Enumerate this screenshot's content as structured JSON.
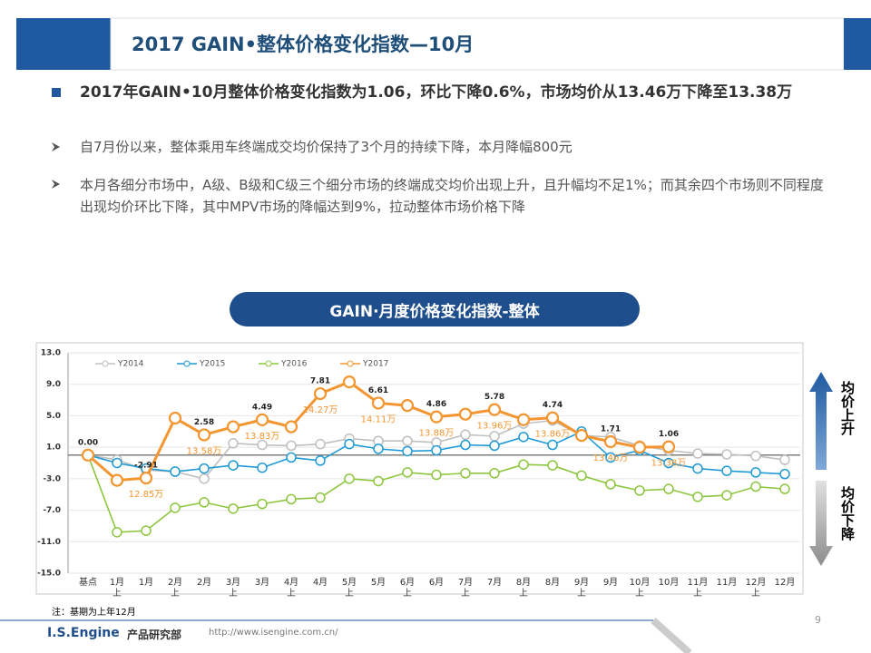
{
  "header": {
    "title": "2017 GAIN•整体价格变化指数—10月"
  },
  "headline": "2017年GAIN•10月整体价格变化指数为1.06，环比下降0.6%，市场均价从13.46万下降至13.38万",
  "points": [
    "自7月份以来，整体乘用车终端成交均价保持了3个月的持续下降，本月降幅800元",
    "本月各细分市场中，A级、B级和C级三个细分市场的终端成交均价出现上升，且升幅均不足1%；而其余四个市场则不同程度出现均价环比下降，其中MPV市场的降幅达到9%，拉动整体市场价格下降"
  ],
  "chart_data": {
    "type": "line",
    "title": "GAIN·月度价格变化指数-整体",
    "categories": [
      "基点",
      "1月上",
      "1月",
      "2月上",
      "2月",
      "3月上",
      "3月",
      "4月上",
      "4月",
      "5月上",
      "5月",
      "6月上",
      "6月",
      "7月上",
      "7月",
      "8月上",
      "8月",
      "9月上",
      "9月",
      "10月上",
      "10月",
      "11月上",
      "11月",
      "12月上",
      "12月"
    ],
    "ylim": [
      -15,
      13
    ],
    "yticks": [
      {
        "value": 13,
        "label": "13.0"
      },
      {
        "value": 9,
        "label": "9.0"
      },
      {
        "value": 5,
        "label": "5.0"
      },
      {
        "value": 1,
        "label": "1.0"
      },
      {
        "value": -3,
        "label": "-3.0"
      },
      {
        "value": -7,
        "label": "-7.0"
      },
      {
        "value": -11,
        "label": "-11.0"
      },
      {
        "value": -15,
        "label": "-15.0"
      }
    ],
    "grid": true,
    "series": [
      {
        "name": "Y2014",
        "color": "#bfbfbf",
        "values": [
          0,
          -0.6,
          -1.9,
          -2.1,
          -3.0,
          1.5,
          1.3,
          1.2,
          1.4,
          2.1,
          1.8,
          1.8,
          1.6,
          2.6,
          2.4,
          4.0,
          4.4,
          2.5,
          2.3,
          1.2,
          0.6,
          0.2,
          0.1,
          -0.1,
          -0.6
        ]
      },
      {
        "name": "Y2015",
        "color": "#1f9ad6",
        "values": [
          0,
          -1.0,
          -1.7,
          -2.1,
          -1.7,
          -1.3,
          -1.6,
          -0.3,
          -0.7,
          1.4,
          0.8,
          0.5,
          0.6,
          1.3,
          1.2,
          2.3,
          1.3,
          3.0,
          -0.3,
          0.6,
          -1.0,
          -1.7,
          -2.0,
          -2.2,
          -2.4
        ]
      },
      {
        "name": "Y2016",
        "color": "#8cc63f",
        "values": [
          0,
          -9.8,
          -9.6,
          -6.7,
          -6.0,
          -6.8,
          -6.2,
          -5.6,
          -5.4,
          -3.0,
          -3.3,
          -2.2,
          -2.5,
          -2.3,
          -2.3,
          -1.2,
          -1.3,
          -2.6,
          -3.7,
          -4.5,
          -4.3,
          -5.3,
          -5.1,
          -4.0,
          -4.3
        ]
      },
      {
        "name": "Y2017",
        "color": "#f39530",
        "values": [
          0,
          -3.2,
          -2.91,
          4.7,
          2.58,
          3.6,
          4.49,
          3.6,
          7.81,
          9.3,
          6.61,
          6.3,
          4.86,
          5.2,
          5.78,
          4.5,
          4.74,
          2.5,
          1.71,
          1.0,
          1.06,
          null,
          null,
          null,
          null
        ],
        "value_labels": [
          "0.00",
          null,
          "-2.91",
          null,
          "2.58",
          null,
          "4.49",
          null,
          "7.81",
          null,
          "6.61",
          null,
          "4.86",
          null,
          "5.78",
          null,
          "4.74",
          null,
          "1.71",
          null,
          "1.06",
          null,
          null,
          null,
          null
        ],
        "price_labels": [
          null,
          null,
          "12.85万",
          null,
          "13.58万",
          null,
          "13.83万",
          null,
          "14.27万",
          null,
          "14.11万",
          null,
          "13.88万",
          null,
          "13.96万",
          null,
          "13.86万",
          null,
          "13.46万",
          null,
          "13.38万",
          null,
          null,
          null,
          null
        ]
      }
    ],
    "side_labels": [
      "均价上升",
      "均价下降"
    ],
    "note": "注：基期为上年12月"
  },
  "footer": {
    "brand": "I.S.Engine",
    "department": "产品研究部",
    "url": "http://www.isengine.com.cn/",
    "page": 9
  }
}
